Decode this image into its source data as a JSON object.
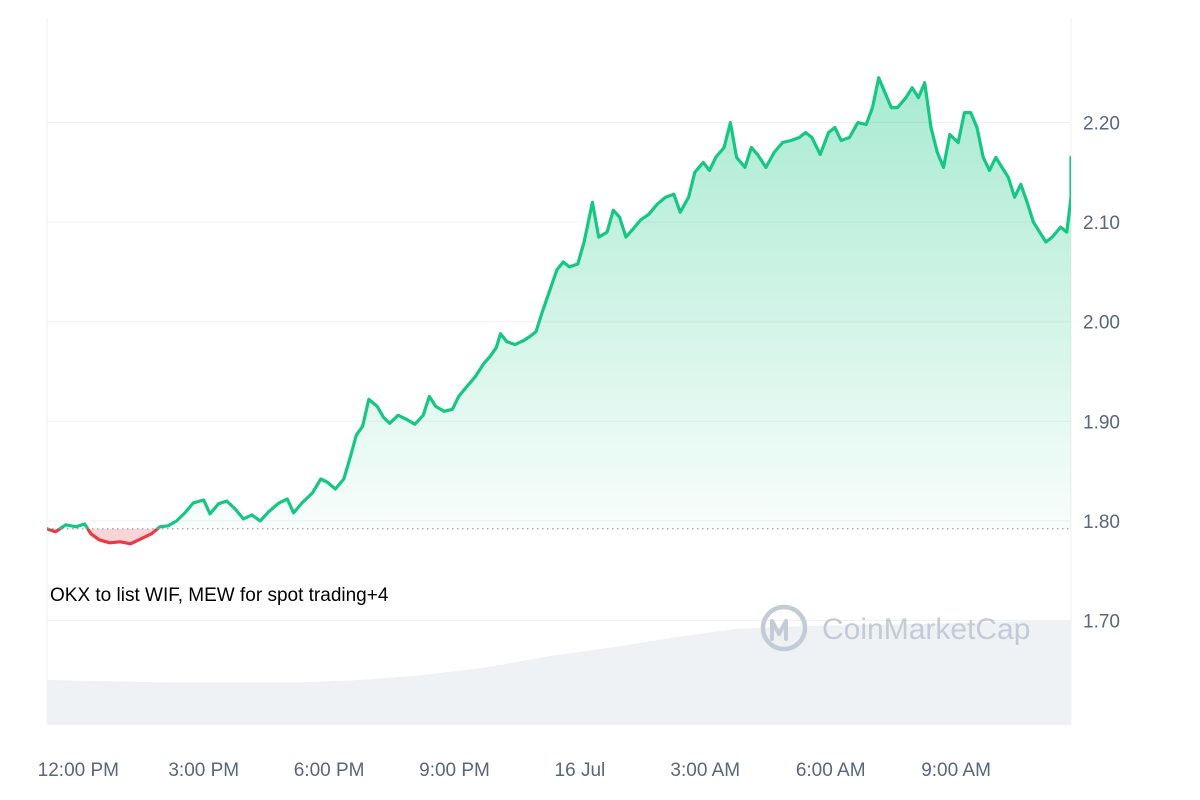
{
  "chart_data": {
    "type": "area",
    "xlabel": "",
    "ylabel": "",
    "baseline": 1.792,
    "ylim": [
      1.595,
      2.305
    ],
    "yticks": [
      1.7,
      1.8,
      1.9,
      2.0,
      2.1,
      2.2
    ],
    "ytick_labels": [
      "1.70",
      "1.80",
      "1.90",
      "2.00",
      "2.10",
      "2.20"
    ],
    "x_range": [
      0,
      24.5
    ],
    "xticks": [
      {
        "x": 0.75,
        "label": "12:00 PM"
      },
      {
        "x": 3.75,
        "label": "3:00 PM"
      },
      {
        "x": 6.75,
        "label": "6:00 PM"
      },
      {
        "x": 9.75,
        "label": "9:00 PM"
      },
      {
        "x": 12.75,
        "label": "16 Jul"
      },
      {
        "x": 15.75,
        "label": "3:00 AM"
      },
      {
        "x": 18.75,
        "label": "6:00 AM"
      },
      {
        "x": 21.75,
        "label": "9:00 AM"
      }
    ],
    "grid": true,
    "above_color": "#16c784",
    "below_color": "#ea3943",
    "volume_color": "#eff2f5",
    "series": [
      {
        "values": [
          [
            0.0,
            1.792
          ],
          [
            0.2,
            1.789
          ],
          [
            0.45,
            1.796
          ],
          [
            0.7,
            1.794
          ],
          [
            0.9,
            1.797
          ],
          [
            1.05,
            1.787
          ],
          [
            1.25,
            1.781
          ],
          [
            1.5,
            1.778
          ],
          [
            1.75,
            1.779
          ],
          [
            2.0,
            1.777
          ],
          [
            2.25,
            1.782
          ],
          [
            2.5,
            1.787
          ],
          [
            2.7,
            1.794
          ],
          [
            2.9,
            1.795
          ],
          [
            3.1,
            1.8
          ],
          [
            3.3,
            1.808
          ],
          [
            3.5,
            1.818
          ],
          [
            3.75,
            1.821
          ],
          [
            3.9,
            1.807
          ],
          [
            4.1,
            1.817
          ],
          [
            4.3,
            1.82
          ],
          [
            4.5,
            1.812
          ],
          [
            4.7,
            1.802
          ],
          [
            4.9,
            1.806
          ],
          [
            5.1,
            1.8
          ],
          [
            5.3,
            1.809
          ],
          [
            5.55,
            1.818
          ],
          [
            5.75,
            1.822
          ],
          [
            5.9,
            1.808
          ],
          [
            6.1,
            1.818
          ],
          [
            6.35,
            1.828
          ],
          [
            6.55,
            1.842
          ],
          [
            6.7,
            1.839
          ],
          [
            6.9,
            1.832
          ],
          [
            7.1,
            1.842
          ],
          [
            7.25,
            1.863
          ],
          [
            7.4,
            1.886
          ],
          [
            7.55,
            1.895
          ],
          [
            7.7,
            1.922
          ],
          [
            7.9,
            1.915
          ],
          [
            8.05,
            1.904
          ],
          [
            8.2,
            1.898
          ],
          [
            8.4,
            1.906
          ],
          [
            8.6,
            1.902
          ],
          [
            8.8,
            1.897
          ],
          [
            9.0,
            1.906
          ],
          [
            9.15,
            1.925
          ],
          [
            9.3,
            1.915
          ],
          [
            9.5,
            1.91
          ],
          [
            9.7,
            1.912
          ],
          [
            9.85,
            1.925
          ],
          [
            10.05,
            1.935
          ],
          [
            10.25,
            1.945
          ],
          [
            10.45,
            1.958
          ],
          [
            10.6,
            1.965
          ],
          [
            10.75,
            1.974
          ],
          [
            10.85,
            1.988
          ],
          [
            11.0,
            1.98
          ],
          [
            11.2,
            1.977
          ],
          [
            11.4,
            1.981
          ],
          [
            11.55,
            1.985
          ],
          [
            11.7,
            1.99
          ],
          [
            11.85,
            2.01
          ],
          [
            12.0,
            2.028
          ],
          [
            12.2,
            2.052
          ],
          [
            12.35,
            2.06
          ],
          [
            12.5,
            2.055
          ],
          [
            12.7,
            2.058
          ],
          [
            12.85,
            2.08
          ],
          [
            12.95,
            2.1
          ],
          [
            13.05,
            2.12
          ],
          [
            13.2,
            2.085
          ],
          [
            13.4,
            2.09
          ],
          [
            13.55,
            2.112
          ],
          [
            13.7,
            2.105
          ],
          [
            13.85,
            2.085
          ],
          [
            14.0,
            2.092
          ],
          [
            14.2,
            2.102
          ],
          [
            14.4,
            2.108
          ],
          [
            14.6,
            2.118
          ],
          [
            14.8,
            2.125
          ],
          [
            15.0,
            2.128
          ],
          [
            15.15,
            2.11
          ],
          [
            15.35,
            2.125
          ],
          [
            15.5,
            2.15
          ],
          [
            15.7,
            2.16
          ],
          [
            15.85,
            2.152
          ],
          [
            16.0,
            2.165
          ],
          [
            16.2,
            2.175
          ],
          [
            16.35,
            2.2
          ],
          [
            16.5,
            2.165
          ],
          [
            16.7,
            2.155
          ],
          [
            16.85,
            2.175
          ],
          [
            17.0,
            2.168
          ],
          [
            17.2,
            2.155
          ],
          [
            17.4,
            2.17
          ],
          [
            17.6,
            2.18
          ],
          [
            17.8,
            2.182
          ],
          [
            18.0,
            2.185
          ],
          [
            18.15,
            2.19
          ],
          [
            18.3,
            2.185
          ],
          [
            18.5,
            2.168
          ],
          [
            18.7,
            2.19
          ],
          [
            18.85,
            2.195
          ],
          [
            19.0,
            2.182
          ],
          [
            19.2,
            2.185
          ],
          [
            19.4,
            2.2
          ],
          [
            19.6,
            2.198
          ],
          [
            19.75,
            2.215
          ],
          [
            19.9,
            2.245
          ],
          [
            20.05,
            2.23
          ],
          [
            20.2,
            2.215
          ],
          [
            20.35,
            2.215
          ],
          [
            20.55,
            2.225
          ],
          [
            20.7,
            2.235
          ],
          [
            20.85,
            2.225
          ],
          [
            21.0,
            2.24
          ],
          [
            21.15,
            2.195
          ],
          [
            21.3,
            2.17
          ],
          [
            21.45,
            2.155
          ],
          [
            21.6,
            2.188
          ],
          [
            21.8,
            2.18
          ],
          [
            21.95,
            2.21
          ],
          [
            22.1,
            2.21
          ],
          [
            22.25,
            2.195
          ],
          [
            22.4,
            2.165
          ],
          [
            22.55,
            2.152
          ],
          [
            22.7,
            2.165
          ],
          [
            22.85,
            2.155
          ],
          [
            23.0,
            2.145
          ],
          [
            23.15,
            2.125
          ],
          [
            23.3,
            2.138
          ],
          [
            23.45,
            2.12
          ],
          [
            23.6,
            2.1
          ],
          [
            23.75,
            2.09
          ],
          [
            23.9,
            2.08
          ],
          [
            24.05,
            2.085
          ],
          [
            24.25,
            2.095
          ],
          [
            24.4,
            2.09
          ],
          [
            24.55,
            2.125
          ],
          [
            24.7,
            2.14
          ],
          [
            24.85,
            2.15
          ],
          [
            24.95,
            2.148
          ],
          [
            25.05,
            2.16
          ],
          [
            25.2,
            2.165
          ],
          [
            25.4,
            2.163
          ]
        ]
      }
    ],
    "volume": {
      "x": [
        0,
        3,
        6,
        7.5,
        9,
        10.5,
        12,
        13.5,
        15,
        16.5,
        18,
        19.5,
        21,
        22.5,
        24,
        25.45
      ],
      "level": [
        0.36,
        0.34,
        0.34,
        0.36,
        0.4,
        0.46,
        0.55,
        0.62,
        0.7,
        0.77,
        0.79,
        0.8,
        0.81,
        0.82,
        0.84,
        0.84
      ]
    }
  },
  "news": {
    "headline": "OKX to list WIF, MEW for spot trading",
    "extra_count": "+4"
  },
  "watermark": {
    "text": "CoinMarketCap"
  }
}
